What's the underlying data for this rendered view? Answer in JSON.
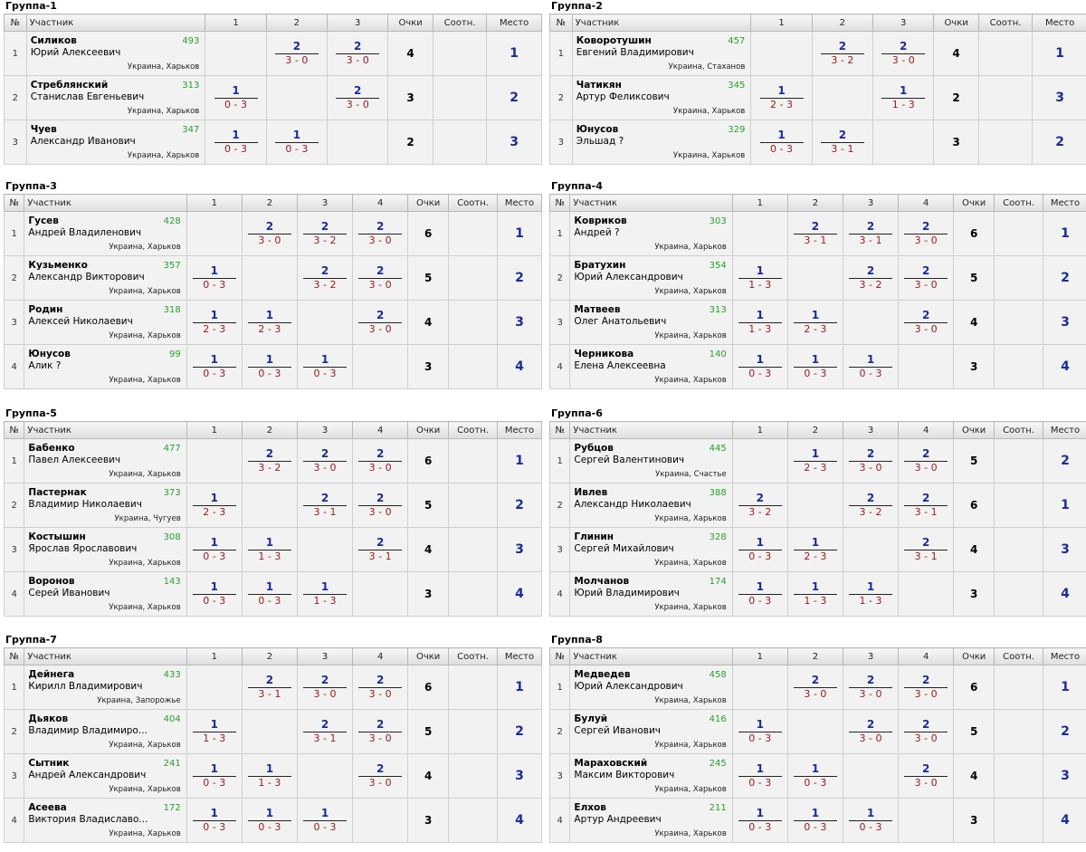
{
  "headers": {
    "no": "№",
    "player": "Участник",
    "points": "Очки",
    "ratio": "Соотн.",
    "place": "Место"
  },
  "groups": [
    {
      "title": "Группа-1",
      "cols": [
        "1",
        "2",
        "3"
      ],
      "rows": [
        {
          "n": "1",
          "last": "Силиков",
          "first": "Юрий Алексеевич",
          "rating": "493",
          "loc": "Украина, Харьков",
          "res": [
            null,
            {
              "w": "2",
              "s": "3 - 0"
            },
            {
              "w": "2",
              "s": "3 - 0"
            }
          ],
          "pts": "4",
          "place": "1"
        },
        {
          "n": "2",
          "last": "Стреблянский",
          "first": "Станислав Евгеньевич",
          "rating": "313",
          "loc": "Украина, Харьков",
          "res": [
            {
              "w": "1",
              "s": "0 - 3"
            },
            null,
            {
              "w": "2",
              "s": "3 - 0"
            }
          ],
          "pts": "3",
          "place": "2"
        },
        {
          "n": "3",
          "last": "Чуев",
          "first": "Александр Иванович",
          "rating": "347",
          "loc": "Украина, Харьков",
          "res": [
            {
              "w": "1",
              "s": "0 - 3"
            },
            {
              "w": "1",
              "s": "0 - 3"
            },
            null
          ],
          "pts": "2",
          "place": "3"
        }
      ]
    },
    {
      "title": "Группа-2",
      "cols": [
        "1",
        "2",
        "3"
      ],
      "rows": [
        {
          "n": "1",
          "last": "Коворотушин",
          "first": "Евгений Владимирович",
          "rating": "457",
          "loc": "Украина, Стаханов",
          "res": [
            null,
            {
              "w": "2",
              "s": "3 - 2"
            },
            {
              "w": "2",
              "s": "3 - 0"
            }
          ],
          "pts": "4",
          "place": "1"
        },
        {
          "n": "2",
          "last": "Чатикян",
          "first": "Артур Феликсович",
          "rating": "345",
          "loc": "Украина, Харьков",
          "res": [
            {
              "w": "1",
              "s": "2 - 3"
            },
            null,
            {
              "w": "1",
              "s": "1 - 3"
            }
          ],
          "pts": "2",
          "place": "3"
        },
        {
          "n": "3",
          "last": "Юнусов",
          "first": "Эльшад ?",
          "rating": "329",
          "loc": "Украина, Харьков",
          "res": [
            {
              "w": "1",
              "s": "0 - 3"
            },
            {
              "w": "2",
              "s": "3 - 1"
            },
            null
          ],
          "pts": "3",
          "place": "2"
        }
      ]
    },
    {
      "title": "Группа-3",
      "cols": [
        "1",
        "2",
        "3",
        "4"
      ],
      "rows": [
        {
          "n": "1",
          "last": "Гусев",
          "first": "Андрей Владиленович",
          "rating": "428",
          "loc": "Украина, Харьков",
          "res": [
            null,
            {
              "w": "2",
              "s": "3 - 0"
            },
            {
              "w": "2",
              "s": "3 - 2"
            },
            {
              "w": "2",
              "s": "3 - 0"
            }
          ],
          "pts": "6",
          "place": "1"
        },
        {
          "n": "2",
          "last": "Кузьменко",
          "first": "Александр Викторович",
          "rating": "357",
          "loc": "Украина, Харьков",
          "res": [
            {
              "w": "1",
              "s": "0 - 3"
            },
            null,
            {
              "w": "2",
              "s": "3 - 2"
            },
            {
              "w": "2",
              "s": "3 - 0"
            }
          ],
          "pts": "5",
          "place": "2"
        },
        {
          "n": "3",
          "last": "Родин",
          "first": "Алексей Николаевич",
          "rating": "318",
          "loc": "Украина, Харьков",
          "res": [
            {
              "w": "1",
              "s": "2 - 3"
            },
            {
              "w": "1",
              "s": "2 - 3"
            },
            null,
            {
              "w": "2",
              "s": "3 - 0"
            }
          ],
          "pts": "4",
          "place": "3"
        },
        {
          "n": "4",
          "last": "Юнусов",
          "first": "Алик ?",
          "rating": "99",
          "loc": "Украина, Харьков",
          "res": [
            {
              "w": "1",
              "s": "0 - 3"
            },
            {
              "w": "1",
              "s": "0 - 3"
            },
            {
              "w": "1",
              "s": "0 - 3"
            },
            null
          ],
          "pts": "3",
          "place": "4"
        }
      ]
    },
    {
      "title": "Группа-4",
      "cols": [
        "1",
        "2",
        "3",
        "4"
      ],
      "rows": [
        {
          "n": "1",
          "last": "Ковриков",
          "first": "Андрей ?",
          "rating": "303",
          "loc": "Украина, Харьков",
          "res": [
            null,
            {
              "w": "2",
              "s": "3 - 1"
            },
            {
              "w": "2",
              "s": "3 - 1"
            },
            {
              "w": "2",
              "s": "3 - 0"
            }
          ],
          "pts": "6",
          "place": "1"
        },
        {
          "n": "2",
          "last": "Братухин",
          "first": "Юрий Александрович",
          "rating": "354",
          "loc": "Украина, Харьков",
          "res": [
            {
              "w": "1",
              "s": "1 - 3"
            },
            null,
            {
              "w": "2",
              "s": "3 - 2"
            },
            {
              "w": "2",
              "s": "3 - 0"
            }
          ],
          "pts": "5",
          "place": "2"
        },
        {
          "n": "3",
          "last": "Матвеев",
          "first": "Олег Анатольевич",
          "rating": "313",
          "loc": "Украина, Харьков",
          "res": [
            {
              "w": "1",
              "s": "1 - 3"
            },
            {
              "w": "1",
              "s": "2 - 3"
            },
            null,
            {
              "w": "2",
              "s": "3 - 0"
            }
          ],
          "pts": "4",
          "place": "3"
        },
        {
          "n": "4",
          "last": "Черникова",
          "first": "Елена Алексеевна",
          "rating": "140",
          "loc": "Украина, Харьков",
          "res": [
            {
              "w": "1",
              "s": "0 - 3"
            },
            {
              "w": "1",
              "s": "0 - 3"
            },
            {
              "w": "1",
              "s": "0 - 3"
            },
            null
          ],
          "pts": "3",
          "place": "4"
        }
      ]
    },
    {
      "title": "Группа-5",
      "cols": [
        "1",
        "2",
        "3",
        "4"
      ],
      "rows": [
        {
          "n": "1",
          "last": "Бабенко",
          "first": "Павел Алексеевич",
          "rating": "477",
          "loc": "Украина, Харьков",
          "res": [
            null,
            {
              "w": "2",
              "s": "3 - 2"
            },
            {
              "w": "2",
              "s": "3 - 0"
            },
            {
              "w": "2",
              "s": "3 - 0"
            }
          ],
          "pts": "6",
          "place": "1"
        },
        {
          "n": "2",
          "last": "Пастернак",
          "first": "Владимир Николаевич",
          "rating": "373",
          "loc": "Украина, Чугуев",
          "res": [
            {
              "w": "1",
              "s": "2 - 3"
            },
            null,
            {
              "w": "2",
              "s": "3 - 1"
            },
            {
              "w": "2",
              "s": "3 - 0"
            }
          ],
          "pts": "5",
          "place": "2"
        },
        {
          "n": "3",
          "last": "Костышин",
          "first": "Ярослав Ярославович",
          "rating": "308",
          "loc": "Украина, Харьков",
          "res": [
            {
              "w": "1",
              "s": "0 - 3"
            },
            {
              "w": "1",
              "s": "1 - 3"
            },
            null,
            {
              "w": "2",
              "s": "3 - 1"
            }
          ],
          "pts": "4",
          "place": "3"
        },
        {
          "n": "4",
          "last": "Воронов",
          "first": "Серей Иванович",
          "rating": "143",
          "loc": "Украина, Харьков",
          "res": [
            {
              "w": "1",
              "s": "0 - 3"
            },
            {
              "w": "1",
              "s": "0 - 3"
            },
            {
              "w": "1",
              "s": "1 - 3"
            },
            null
          ],
          "pts": "3",
          "place": "4"
        }
      ]
    },
    {
      "title": "Группа-6",
      "cols": [
        "1",
        "2",
        "3",
        "4"
      ],
      "rows": [
        {
          "n": "1",
          "last": "Рубцов",
          "first": "Сергей Валентинович",
          "rating": "445",
          "loc": "Украина, Счастье",
          "res": [
            null,
            {
              "w": "1",
              "s": "2 - 3"
            },
            {
              "w": "2",
              "s": "3 - 0"
            },
            {
              "w": "2",
              "s": "3 - 0"
            }
          ],
          "pts": "5",
          "place": "2"
        },
        {
          "n": "2",
          "last": "Ивлев",
          "first": "Александр Николаевич",
          "rating": "388",
          "loc": "Украина, Харьков",
          "res": [
            {
              "w": "2",
              "s": "3 - 2"
            },
            null,
            {
              "w": "2",
              "s": "3 - 2"
            },
            {
              "w": "2",
              "s": "3 - 1"
            }
          ],
          "pts": "6",
          "place": "1"
        },
        {
          "n": "3",
          "last": "Глинин",
          "first": "Сергей Михайлович",
          "rating": "328",
          "loc": "Украина, Харьков",
          "res": [
            {
              "w": "1",
              "s": "0 - 3"
            },
            {
              "w": "1",
              "s": "2 - 3"
            },
            null,
            {
              "w": "2",
              "s": "3 - 1"
            }
          ],
          "pts": "4",
          "place": "3"
        },
        {
          "n": "4",
          "last": "Молчанов",
          "first": "Юрий Владимирович",
          "rating": "174",
          "loc": "Украина, Харьков",
          "res": [
            {
              "w": "1",
              "s": "0 - 3"
            },
            {
              "w": "1",
              "s": "1 - 3"
            },
            {
              "w": "1",
              "s": "1 - 3"
            },
            null
          ],
          "pts": "3",
          "place": "4"
        }
      ]
    },
    {
      "title": "Группа-7",
      "cols": [
        "1",
        "2",
        "3",
        "4"
      ],
      "rows": [
        {
          "n": "1",
          "last": "Дейнега",
          "first": "Кирилл Владимирович",
          "rating": "433",
          "loc": "Украина, Запорожье",
          "res": [
            null,
            {
              "w": "2",
              "s": "3 - 1"
            },
            {
              "w": "2",
              "s": "3 - 0"
            },
            {
              "w": "2",
              "s": "3 - 0"
            }
          ],
          "pts": "6",
          "place": "1"
        },
        {
          "n": "2",
          "last": "Дьяков",
          "first": "Владимир Владимиро...",
          "rating": "404",
          "loc": "Украина, Харьков",
          "res": [
            {
              "w": "1",
              "s": "1 - 3"
            },
            null,
            {
              "w": "2",
              "s": "3 - 1"
            },
            {
              "w": "2",
              "s": "3 - 0"
            }
          ],
          "pts": "5",
          "place": "2"
        },
        {
          "n": "3",
          "last": "Сытник",
          "first": "Андрей Александрович",
          "rating": "241",
          "loc": "Украина, Харьков",
          "res": [
            {
              "w": "1",
              "s": "0 - 3"
            },
            {
              "w": "1",
              "s": "1 - 3"
            },
            null,
            {
              "w": "2",
              "s": "3 - 0"
            }
          ],
          "pts": "4",
          "place": "3"
        },
        {
          "n": "4",
          "last": "Асеева",
          "first": "Виктория Владиславо...",
          "rating": "172",
          "loc": "Украина, Харьков",
          "res": [
            {
              "w": "1",
              "s": "0 - 3"
            },
            {
              "w": "1",
              "s": "0 - 3"
            },
            {
              "w": "1",
              "s": "0 - 3"
            },
            null
          ],
          "pts": "3",
          "place": "4"
        }
      ]
    },
    {
      "title": "Группа-8",
      "cols": [
        "1",
        "2",
        "3",
        "4"
      ],
      "rows": [
        {
          "n": "1",
          "last": "Медведев",
          "first": "Юрий Александрович",
          "rating": "458",
          "loc": "Украина, Харьков",
          "res": [
            null,
            {
              "w": "2",
              "s": "3 - 0"
            },
            {
              "w": "2",
              "s": "3 - 0"
            },
            {
              "w": "2",
              "s": "3 - 0"
            }
          ],
          "pts": "6",
          "place": "1"
        },
        {
          "n": "2",
          "last": "Булуй",
          "first": "Сергей Иванович",
          "rating": "416",
          "loc": "Украина, Харьков",
          "res": [
            {
              "w": "1",
              "s": "0 - 3"
            },
            null,
            {
              "w": "2",
              "s": "3 - 0"
            },
            {
              "w": "2",
              "s": "3 - 0"
            }
          ],
          "pts": "5",
          "place": "2"
        },
        {
          "n": "3",
          "last": "Мараховский",
          "first": "Максим Викторович",
          "rating": "245",
          "loc": "Украина, Харьков",
          "res": [
            {
              "w": "1",
              "s": "0 - 3"
            },
            {
              "w": "1",
              "s": "0 - 3"
            },
            null,
            {
              "w": "2",
              "s": "3 - 0"
            }
          ],
          "pts": "4",
          "place": "3"
        },
        {
          "n": "4",
          "last": "Елхов",
          "first": "Артур Андреевич",
          "rating": "211",
          "loc": "Украина, Харьков",
          "res": [
            {
              "w": "1",
              "s": "0 - 3"
            },
            {
              "w": "1",
              "s": "0 - 3"
            },
            {
              "w": "1",
              "s": "0 - 3"
            },
            null
          ],
          "pts": "3",
          "place": "4"
        }
      ]
    }
  ]
}
